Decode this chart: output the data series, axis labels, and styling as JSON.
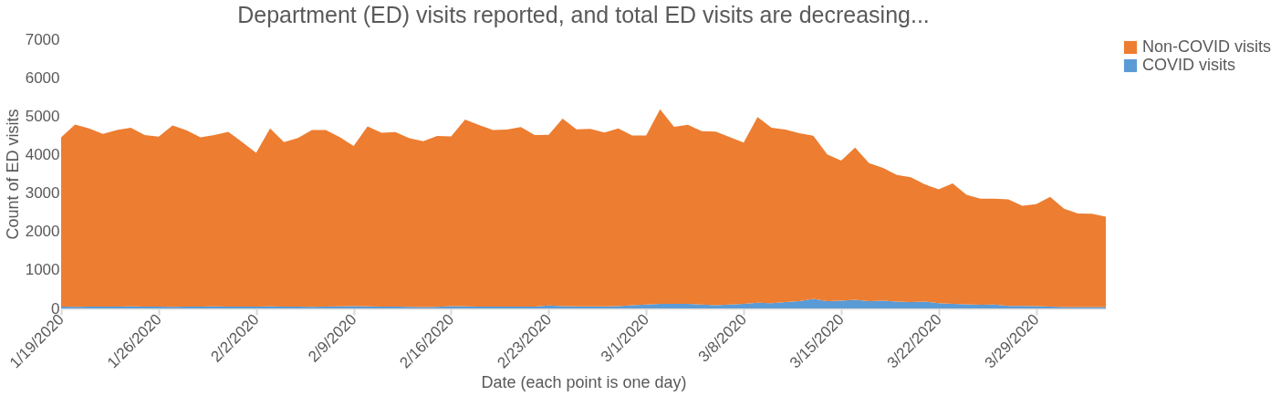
{
  "chart_data": {
    "type": "area",
    "title": "Department (ED) visits reported, and total ED visits are decreasing...",
    "xlabel": "Date (each point is one day)",
    "ylabel": "Count of ED visits",
    "categories": [
      "1/19/2020",
      null,
      null,
      null,
      null,
      null,
      null,
      "1/26/2020",
      null,
      null,
      null,
      null,
      null,
      null,
      "2/2/2020",
      null,
      null,
      null,
      null,
      null,
      null,
      "2/9/2020",
      null,
      null,
      null,
      null,
      null,
      null,
      "2/16/2020",
      null,
      null,
      null,
      null,
      null,
      null,
      "2/23/2020",
      null,
      null,
      null,
      null,
      null,
      null,
      "3/1/2020",
      null,
      null,
      null,
      null,
      null,
      null,
      "3/8/2020",
      null,
      null,
      null,
      null,
      null,
      null,
      "3/15/2020",
      null,
      null,
      null,
      null,
      null,
      null,
      "3/22/2020",
      null,
      null,
      null,
      null,
      null,
      null,
      "3/29/2020",
      null,
      null,
      null,
      null,
      null
    ],
    "stacked": true,
    "ylim": [
      0,
      7000
    ],
    "yticks": [
      0,
      1000,
      2000,
      3000,
      4000,
      5000,
      6000,
      7000
    ],
    "grid": false,
    "legend": "right",
    "series": [
      {
        "name": "COVID visits",
        "color": "#5b9bd5",
        "values": [
          45,
          40,
          50,
          45,
          50,
          55,
          50,
          45,
          40,
          45,
          50,
          55,
          50,
          45,
          50,
          55,
          50,
          45,
          40,
          45,
          55,
          60,
          55,
          50,
          45,
          42,
          35,
          40,
          58,
          55,
          50,
          50,
          45,
          45,
          50,
          75,
          60,
          55,
          55,
          55,
          60,
          84,
          100,
          117,
          117,
          117,
          100,
          84,
          100,
          117,
          150,
          134,
          167,
          192,
          251,
          192,
          201,
          226,
          192,
          201,
          176,
          167,
          176,
          134,
          117,
          109,
          92,
          100,
          67,
          67,
          59,
          50,
          33,
          33,
          33,
          33
        ]
      },
      {
        "name": "Non-COVID visits",
        "color": "#ed7d31",
        "values": [
          4403,
          4743,
          4633,
          4496,
          4591,
          4645,
          4457,
          4421,
          4718,
          4588,
          4399,
          4452,
          4541,
          4279,
          3998,
          4628,
          4274,
          4387,
          4601,
          4596,
          4402,
          4164,
          4678,
          4516,
          4538,
          4382,
          4314,
          4442,
          4416,
          4854,
          4717,
          4591,
          4605,
          4672,
          4457,
          4441,
          4874,
          4603,
          4612,
          4520,
          4623,
          4415,
          4399,
          5059,
          4608,
          4658,
          4508,
          4516,
          4357,
          4198,
          4826,
          4566,
          4483,
          4366,
          4240,
          3814,
          3646,
          3956,
          3588,
          3454,
          3295,
          3245,
          3052,
          2960,
          3136,
          2843,
          2760,
          2752,
          2768,
          2600,
          2650,
          2852,
          2559,
          2434,
          2426,
          2350
        ]
      }
    ]
  }
}
